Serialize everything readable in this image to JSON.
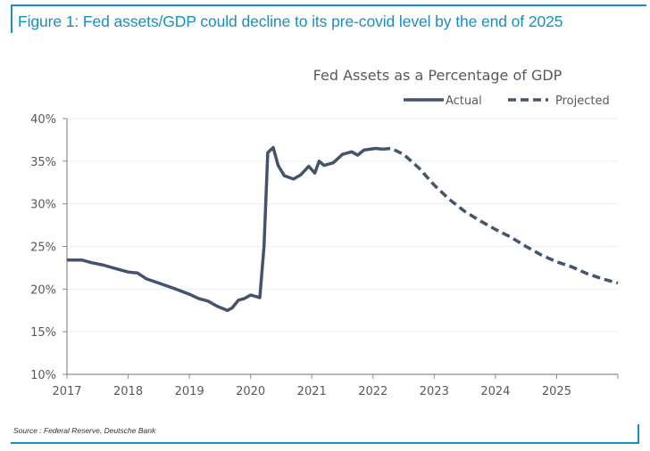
{
  "figure": {
    "caption": "Figure 1: Fed assets/GDP could decline to its pre-covid level by the end of 2025",
    "source": "Source : Federal Reserve, Deutsche Bank",
    "accent_color": "#1a8fbf"
  },
  "chart_data": {
    "type": "line",
    "title": "Fed Assets as a Percentage of GDP",
    "xlabel": "",
    "ylabel": "",
    "xlim": [
      2017,
      2026
    ],
    "ylim": [
      10,
      40
    ],
    "x_ticks": [
      "2017",
      "2018",
      "2019",
      "2020",
      "2021",
      "2022",
      "2023",
      "2024",
      "2025"
    ],
    "y_ticks": [
      "10%",
      "15%",
      "20%",
      "25%",
      "30%",
      "35%",
      "40%"
    ],
    "y_tick_values": [
      10,
      15,
      20,
      25,
      30,
      35,
      40
    ],
    "grid": "horizontal",
    "legend": "top-right",
    "line_color": "#44546a",
    "series": [
      {
        "name": "Actual",
        "style": "solid",
        "x": [
          2017.0,
          2017.25,
          2017.4,
          2017.6,
          2017.8,
          2018.0,
          2018.15,
          2018.3,
          2018.5,
          2018.7,
          2018.85,
          2019.0,
          2019.15,
          2019.3,
          2019.45,
          2019.55,
          2019.62,
          2019.7,
          2019.8,
          2019.9,
          2020.0,
          2020.15,
          2020.22,
          2020.28,
          2020.37,
          2020.45,
          2020.55,
          2020.7,
          2020.82,
          2020.95,
          2021.05,
          2021.12,
          2021.2,
          2021.35,
          2021.5,
          2021.65,
          2021.75,
          2021.85,
          2021.95,
          2022.05,
          2022.15
        ],
        "values": [
          23.4,
          23.4,
          23.1,
          22.8,
          22.4,
          22.0,
          21.9,
          21.2,
          20.7,
          20.2,
          19.8,
          19.4,
          18.9,
          18.6,
          18.0,
          17.7,
          17.5,
          17.8,
          18.7,
          18.9,
          19.3,
          19.0,
          25.0,
          36.0,
          36.6,
          34.5,
          33.3,
          32.9,
          33.4,
          34.4,
          33.6,
          35.0,
          34.5,
          34.8,
          35.8,
          36.1,
          35.7,
          36.3,
          36.4,
          36.5,
          36.4
        ]
      },
      {
        "name": "Projected",
        "style": "dashed",
        "x": [
          2022.15,
          2022.3,
          2022.5,
          2022.75,
          2023.0,
          2023.25,
          2023.5,
          2023.75,
          2024.0,
          2024.25,
          2024.5,
          2024.75,
          2025.0,
          2025.25,
          2025.5,
          2025.75,
          2026.0
        ],
        "values": [
          36.4,
          36.5,
          35.8,
          34.2,
          32.2,
          30.5,
          29.1,
          28.0,
          27.0,
          26.1,
          25.0,
          24.0,
          23.2,
          22.6,
          21.8,
          21.2,
          20.7
        ]
      }
    ]
  }
}
